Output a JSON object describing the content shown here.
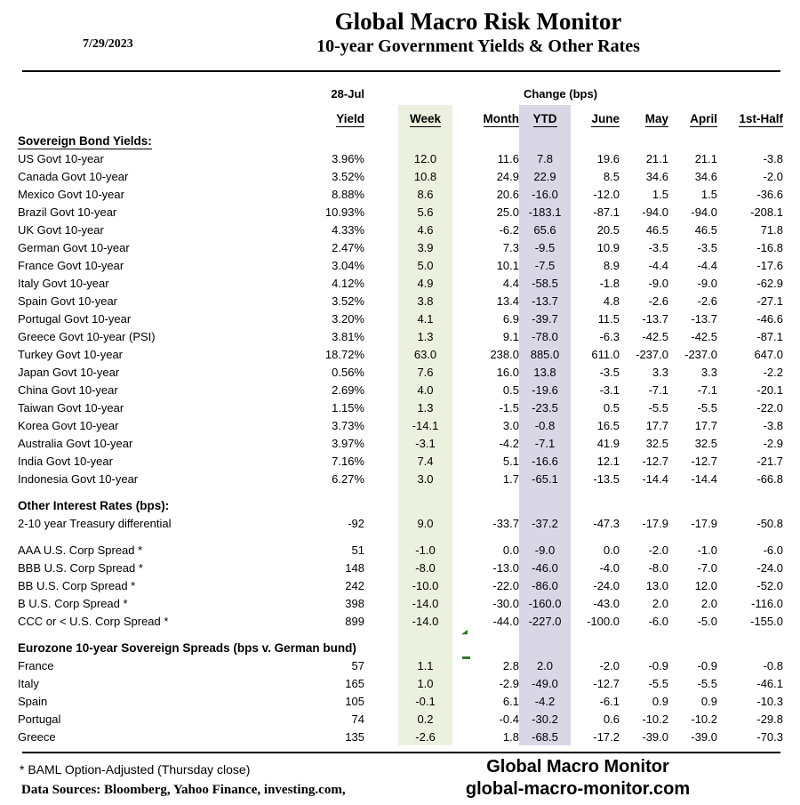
{
  "header": {
    "date": "7/29/2023",
    "title": "Global Macro Risk Monitor",
    "subtitle": "10-year Government Yields & Other Rates"
  },
  "table": {
    "group_headers": {
      "as_of": "28-Jul",
      "change": "Change (bps)"
    },
    "columns": [
      "Yield",
      "Week",
      "Month",
      "YTD",
      "June",
      "May",
      "April",
      "1st-Half"
    ],
    "rows": [
      {
        "type": "section",
        "label": "Sovereign Bond Yields:",
        "underline": true
      },
      {
        "type": "data",
        "label": "US Govt 10-year",
        "yield": "3.96%",
        "values": [
          "12.0",
          "11.6",
          "7.8",
          "19.6",
          "21.1",
          "21.1",
          "-3.8"
        ]
      },
      {
        "type": "data",
        "label": "Canada Govt 10-year",
        "yield": "3.52%",
        "values": [
          "10.8",
          "24.9",
          "22.9",
          "8.5",
          "34.6",
          "34.6",
          "-2.0"
        ]
      },
      {
        "type": "data",
        "label": "Mexico Govt 10-year",
        "yield": "8.88%",
        "values": [
          "8.6",
          "20.6",
          "-16.0",
          "-12.0",
          "1.5",
          "1.5",
          "-36.6"
        ]
      },
      {
        "type": "data",
        "label": "Brazil Govt 10-year",
        "yield": "10.93%",
        "values": [
          "5.6",
          "25.0",
          "-183.1",
          "-87.1",
          "-94.0",
          "-94.0",
          "-208.1"
        ]
      },
      {
        "type": "data",
        "label": "UK Govt 10-year",
        "yield": "4.33%",
        "values": [
          "4.6",
          "-6.2",
          "65.6",
          "20.5",
          "46.5",
          "46.5",
          "71.8"
        ]
      },
      {
        "type": "data",
        "label": "German Govt 10-year",
        "yield": "2.47%",
        "values": [
          "3.9",
          "7.3",
          "-9.5",
          "10.9",
          "-3.5",
          "-3.5",
          "-16.8"
        ]
      },
      {
        "type": "data",
        "label": "France Govt 10-year",
        "yield": "3.04%",
        "values": [
          "5.0",
          "10.1",
          "-7.5",
          "8.9",
          "-4.4",
          "-4.4",
          "-17.6"
        ]
      },
      {
        "type": "data",
        "label": "Italy Govt 10-year",
        "yield": "4.12%",
        "values": [
          "4.9",
          "4.4",
          "-58.5",
          "-1.8",
          "-9.0",
          "-9.0",
          "-62.9"
        ]
      },
      {
        "type": "data",
        "label": "Spain Govt 10-year",
        "yield": "3.52%",
        "values": [
          "3.8",
          "13.4",
          "-13.7",
          "4.8",
          "-2.6",
          "-2.6",
          "-27.1"
        ]
      },
      {
        "type": "data",
        "label": "Portugal Govt 10-year",
        "yield": "3.20%",
        "values": [
          "4.1",
          "6.9",
          "-39.7",
          "11.5",
          "-13.7",
          "-13.7",
          "-46.6"
        ]
      },
      {
        "type": "data",
        "label": "Greece Govt 10-year (PSI)",
        "yield": "3.81%",
        "values": [
          "1.3",
          "9.1",
          "-78.0",
          "-6.3",
          "-42.5",
          "-42.5",
          "-87.1"
        ]
      },
      {
        "type": "data",
        "label": "Turkey Govt 10-year",
        "yield": "18.72%",
        "values": [
          "63.0",
          "238.0",
          "885.0",
          "611.0",
          "-237.0",
          "-237.0",
          "647.0"
        ]
      },
      {
        "type": "data",
        "label": "Japan Govt 10-year",
        "yield": "0.56%",
        "values": [
          "7.6",
          "16.0",
          "13.8",
          "-3.5",
          "3.3",
          "3.3",
          "-2.2"
        ]
      },
      {
        "type": "data",
        "label": "China Govt 10-year",
        "yield": "2.69%",
        "values": [
          "4.0",
          "0.5",
          "-19.6",
          "-3.1",
          "-7.1",
          "-7.1",
          "-20.1"
        ]
      },
      {
        "type": "data",
        "label": "Taiwan Govt 10-year",
        "yield": "1.15%",
        "values": [
          "1.3",
          "-1.5",
          "-23.5",
          "0.5",
          "-5.5",
          "-5.5",
          "-22.0"
        ]
      },
      {
        "type": "data",
        "label": "Korea Govt 10-year",
        "yield": "3.73%",
        "values": [
          "-14.1",
          "3.0",
          "-0.8",
          "16.5",
          "17.7",
          "17.7",
          "-3.8"
        ]
      },
      {
        "type": "data",
        "label": "Australia Govt 10-year",
        "yield": "3.97%",
        "values": [
          "-3.1",
          "-4.2",
          "-7.1",
          "41.9",
          "32.5",
          "32.5",
          "-2.9"
        ]
      },
      {
        "type": "data",
        "label": "India Govt 10-year",
        "yield": "7.16%",
        "values": [
          "7.4",
          "5.1",
          "-16.6",
          "12.1",
          "-12.7",
          "-12.7",
          "-21.7"
        ]
      },
      {
        "type": "data",
        "label": "Indonesia Govt 10-year",
        "yield": "6.27%",
        "values": [
          "3.0",
          "1.7",
          "-65.1",
          "-13.5",
          "-14.4",
          "-14.4",
          "-66.8"
        ]
      },
      {
        "type": "spacer"
      },
      {
        "type": "section",
        "label": "Other Interest Rates  (bps):"
      },
      {
        "type": "data",
        "label": "2-10 year Treasury differential",
        "yield": "-92",
        "values": [
          "9.0",
          "-33.7",
          "-37.2",
          "-47.3",
          "-17.9",
          "-17.9",
          "-50.8"
        ]
      },
      {
        "type": "spacer"
      },
      {
        "type": "data",
        "label": "AAA U.S. Corp Spread *",
        "yield": "51",
        "values": [
          "-1.0",
          "0.0",
          "-9.0",
          "0.0",
          "-2.0",
          "-1.0",
          "-6.0"
        ]
      },
      {
        "type": "data",
        "label": "BBB U.S. Corp Spread *",
        "yield": "148",
        "values": [
          "-8.0",
          "-13.0",
          "-46.0",
          "-4.0",
          "-8.0",
          "-7.0",
          "-24.0"
        ]
      },
      {
        "type": "data",
        "label": "BB U.S. Corp Spread *",
        "yield": "242",
        "values": [
          "-10.0",
          "-22.0",
          "-86.0",
          "-24.0",
          "13.0",
          "12.0",
          "-52.0"
        ]
      },
      {
        "type": "data",
        "label": "B U.S. Corp Spread *",
        "yield": "398",
        "values": [
          "-14.0",
          "-30.0",
          "-160.0",
          "-43.0",
          "2.0",
          "2.0",
          "-116.0"
        ]
      },
      {
        "type": "data",
        "label": "CCC or < U.S. Corp Spread *",
        "yield": "899",
        "values": [
          "-14.0",
          "-44.0",
          "-227.0",
          "-100.0",
          "-6.0",
          "-5.0",
          "-155.0"
        ]
      },
      {
        "type": "spacer"
      },
      {
        "type": "section",
        "label": "Eurozone 10-year Sovereign Spreads (bps v. German bund)"
      },
      {
        "type": "data",
        "label": "France",
        "indent": true,
        "yield": "57",
        "values": [
          "1.1",
          "2.8",
          "2.0",
          "-2.0",
          "-0.9",
          "-0.9",
          "-0.8"
        ]
      },
      {
        "type": "data",
        "label": "Italy",
        "indent": true,
        "yield": "165",
        "values": [
          "1.0",
          "-2.9",
          "-49.0",
          "-12.7",
          "-5.5",
          "-5.5",
          "-46.1"
        ]
      },
      {
        "type": "data",
        "label": "Spain",
        "indent": true,
        "yield": "105",
        "values": [
          "-0.1",
          "6.1",
          "-4.2",
          "-6.1",
          "0.9",
          "0.9",
          "-10.3"
        ]
      },
      {
        "type": "data",
        "label": "Portugal",
        "indent": true,
        "yield": "74",
        "values": [
          "0.2",
          "-0.4",
          "-30.2",
          "0.6",
          "-10.2",
          "-10.2",
          "-29.8"
        ]
      },
      {
        "type": "data",
        "label": "Greece",
        "indent": true,
        "yield": "135",
        "values": [
          "-2.6",
          "1.8",
          "-68.5",
          "-17.2",
          "-39.0",
          "-39.0",
          "-70.3"
        ]
      }
    ]
  },
  "footer": {
    "footnote": "* BAML Option-Adjusted (Thursday close)",
    "sources": "Data Sources:  Bloomberg,  Yahoo Finance, investing.com,",
    "brand_name": "Global Macro Monitor",
    "brand_url": "global-macro-monitor.com"
  },
  "colors": {
    "week_band": "#ecf0de",
    "ytd_band": "#d9d6e6",
    "marker_green": "#2e7d25"
  }
}
